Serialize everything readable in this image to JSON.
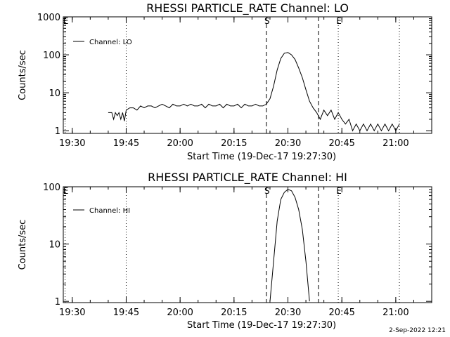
{
  "footer": {
    "timestamp": "2-Sep-2022 12:21"
  },
  "chart_data": [
    {
      "type": "line",
      "title": "RHESSI PARTICLE_RATE Channel: LO",
      "xlabel": "Start Time (19-Dec-17 19:27:30)",
      "ylabel": "Counts/sec",
      "y_scale": "log",
      "ylim": [
        0.85,
        1000
      ],
      "yticks": [
        "1",
        "10",
        "100",
        "1000"
      ],
      "xlim": [
        "19:27:30",
        "21:10:00"
      ],
      "xticks": [
        "19:30",
        "19:45",
        "20:00",
        "20:15",
        "20:30",
        "20:45",
        "21:00"
      ],
      "markers": [
        {
          "label": "E",
          "time": "19:28:00",
          "style": "dotted"
        },
        {
          "label": "",
          "time": "19:45:00",
          "style": "dotted"
        },
        {
          "label": "S",
          "time": "20:24:00",
          "style": "dashed"
        },
        {
          "label": "",
          "time": "20:38:30",
          "style": "dashed"
        },
        {
          "label": "E",
          "time": "20:44:00",
          "style": "dotted"
        },
        {
          "label": "",
          "time": "21:01:00",
          "style": "dotted"
        }
      ],
      "series": [
        {
          "name": "Channel: LO",
          "x": [
            "19:40:00",
            "19:41:00",
            "19:41:30",
            "19:42:00",
            "19:42:30",
            "19:43:00",
            "19:43:30",
            "19:44:00",
            "19:44:30",
            "19:45:00",
            "19:46:00",
            "19:47:00",
            "19:48:00",
            "19:49:00",
            "19:50:00",
            "19:51:00",
            "19:52:00",
            "19:53:00",
            "19:54:00",
            "19:55:00",
            "19:56:00",
            "19:57:00",
            "19:58:00",
            "19:59:00",
            "20:00:00",
            "20:01:00",
            "20:02:00",
            "20:03:00",
            "20:04:00",
            "20:05:00",
            "20:06:00",
            "20:07:00",
            "20:08:00",
            "20:09:00",
            "20:10:00",
            "20:11:00",
            "20:12:00",
            "20:13:00",
            "20:14:00",
            "20:15:00",
            "20:16:00",
            "20:17:00",
            "20:18:00",
            "20:19:00",
            "20:20:00",
            "20:21:00",
            "20:22:00",
            "20:23:00",
            "20:24:00",
            "20:25:00",
            "20:26:00",
            "20:27:00",
            "20:28:00",
            "20:29:00",
            "20:30:00",
            "20:31:00",
            "20:32:00",
            "20:33:00",
            "20:34:00",
            "20:35:00",
            "20:36:00",
            "20:37:00",
            "20:38:00",
            "20:39:00",
            "20:40:00",
            "20:41:00",
            "20:42:00",
            "20:43:00",
            "20:44:00",
            "20:45:00",
            "20:46:00",
            "20:47:00",
            "20:48:00",
            "20:49:00",
            "20:50:00",
            "20:51:00",
            "20:52:00",
            "20:53:00",
            "20:54:00",
            "20:55:00",
            "20:56:00",
            "20:57:00",
            "20:58:00",
            "20:59:00",
            "21:00:00",
            "21:01:00"
          ],
          "y": [
            3,
            3,
            2,
            3,
            2.5,
            3,
            2,
            3,
            1.8,
            3.5,
            4,
            4,
            3.5,
            4.5,
            4,
            4.5,
            4.5,
            4,
            4.5,
            5,
            4.5,
            4,
            5,
            4.5,
            4.5,
            5,
            4.5,
            5,
            4.5,
            4.5,
            5,
            4,
            5,
            4.5,
            4.5,
            5,
            4,
            5,
            4.5,
            4.5,
            5,
            4,
            5,
            4.5,
            4.5,
            5,
            4.5,
            4.5,
            5,
            7,
            15,
            40,
            80,
            110,
            115,
            100,
            75,
            45,
            25,
            12,
            6,
            4,
            3,
            2,
            3.5,
            2.5,
            3.5,
            2,
            3,
            2,
            1.5,
            2,
            1,
            1.5,
            1,
            1.5,
            1,
            1.5,
            1,
            1.5,
            1,
            1.5,
            1,
            1.5,
            1,
            1.5
          ]
        }
      ]
    },
    {
      "type": "line",
      "title": "RHESSI PARTICLE_RATE Channel: HI",
      "xlabel": "Start Time (19-Dec-17 19:27:30)",
      "ylabel": "Counts/sec",
      "y_scale": "log",
      "ylim": [
        0.95,
        100
      ],
      "yticks": [
        "1",
        "10",
        "100"
      ],
      "xlim": [
        "19:27:30",
        "21:10:00"
      ],
      "xticks": [
        "19:30",
        "19:45",
        "20:00",
        "20:15",
        "20:30",
        "20:45",
        "21:00"
      ],
      "markers": [
        {
          "label": "E",
          "time": "19:28:00",
          "style": "dotted"
        },
        {
          "label": "",
          "time": "19:45:00",
          "style": "dotted"
        },
        {
          "label": "S",
          "time": "20:24:00",
          "style": "dashed"
        },
        {
          "label": "",
          "time": "20:38:30",
          "style": "dashed"
        },
        {
          "label": "E",
          "time": "20:44:00",
          "style": "dotted"
        },
        {
          "label": "",
          "time": "21:01:00",
          "style": "dotted"
        }
      ],
      "series": [
        {
          "name": "Channel: HI",
          "x": [
            "20:25:00",
            "20:26:00",
            "20:27:00",
            "20:28:00",
            "20:29:00",
            "20:30:00",
            "20:31:00",
            "20:32:00",
            "20:33:00",
            "20:34:00",
            "20:35:00",
            "20:36:00"
          ],
          "y": [
            1,
            5,
            25,
            60,
            80,
            90,
            85,
            65,
            40,
            18,
            5,
            1
          ]
        }
      ]
    }
  ]
}
